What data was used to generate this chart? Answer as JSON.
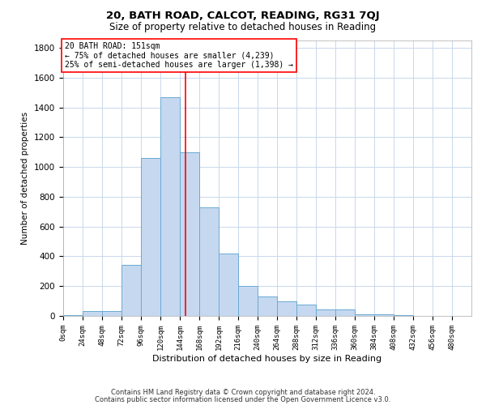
{
  "title1": "20, BATH ROAD, CALCOT, READING, RG31 7QJ",
  "title2": "Size of property relative to detached houses in Reading",
  "xlabel": "Distribution of detached houses by size in Reading",
  "ylabel": "Number of detached properties",
  "bin_labels": [
    "0sqm",
    "24sqm",
    "48sqm",
    "72sqm",
    "96sqm",
    "120sqm",
    "144sqm",
    "168sqm",
    "192sqm",
    "216sqm",
    "240sqm",
    "264sqm",
    "288sqm",
    "312sqm",
    "336sqm",
    "360sqm",
    "384sqm",
    "408sqm",
    "432sqm",
    "456sqm",
    "480sqm"
  ],
  "bar_values": [
    5,
    30,
    30,
    345,
    1060,
    1470,
    1100,
    730,
    420,
    200,
    130,
    100,
    75,
    45,
    45,
    10,
    10,
    3,
    1,
    0,
    0
  ],
  "bar_color": "#c5d8f0",
  "bar_edge_color": "#6aaad4",
  "red_line_x": 151,
  "bin_width": 24,
  "ylim": [
    0,
    1850
  ],
  "yticks": [
    0,
    200,
    400,
    600,
    800,
    1000,
    1200,
    1400,
    1600,
    1800
  ],
  "annotation_box_text": "20 BATH ROAD: 151sqm\n← 75% of detached houses are smaller (4,239)\n25% of semi-detached houses are larger (1,398) →",
  "footer1": "Contains HM Land Registry data © Crown copyright and database right 2024.",
  "footer2": "Contains public sector information licensed under the Open Government Licence v3.0.",
  "background_color": "#ffffff",
  "grid_color": "#c8d8ec"
}
